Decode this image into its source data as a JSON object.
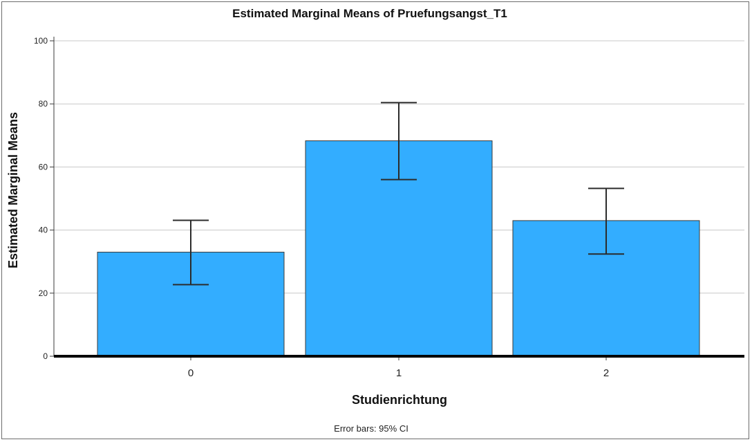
{
  "chart_data": {
    "type": "bar",
    "title": "Estimated Marginal Means of Pruefungsangst_T1",
    "xlabel": "Studienrichtung",
    "ylabel": "Estimated Marginal Means",
    "categories": [
      "0",
      "1",
      "2"
    ],
    "values": [
      33,
      68.3,
      43
    ],
    "error_bars": {
      "lower": [
        22.7,
        56,
        32.4
      ],
      "upper": [
        43.1,
        80.4,
        53.2
      ]
    },
    "yticks": [
      0,
      20,
      40,
      60,
      80,
      100
    ],
    "ylim": [
      0,
      100
    ],
    "grid": true,
    "bar_color": "#33adff",
    "bar_edge_color": "#3a3a3a",
    "errorbar_color": "#2b2b2b",
    "gridline_color": "#c8c8c8",
    "footnote": "Error bars: 95% CI"
  }
}
